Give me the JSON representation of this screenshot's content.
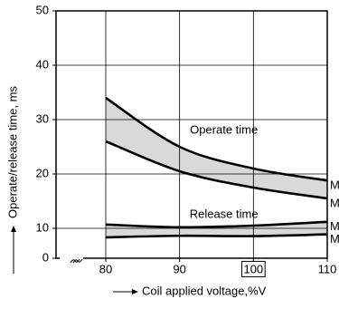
{
  "chart_data": {
    "type": "line",
    "x_label": "Coil applied voltage,%V",
    "y_label": "Operate/release time, ms",
    "x": [
      80,
      90,
      100,
      110
    ],
    "xlim": [
      80,
      110
    ],
    "xticks": [
      80,
      90,
      100,
      110
    ],
    "ylim": [
      0,
      50
    ],
    "yticks": [
      0,
      10,
      20,
      30,
      40,
      50
    ],
    "grid": true,
    "boxed_xtick": 100,
    "fill_between": [
      [
        0,
        1
      ],
      [
        2,
        3
      ]
    ],
    "fill_color": "#d9d9d9",
    "series": [
      {
        "name": "M",
        "color": "#000000",
        "values": [
          34,
          25,
          21,
          18.8
        ]
      },
      {
        "name": "M",
        "color": "#000000",
        "values": [
          26,
          20.5,
          17.5,
          15.5
        ]
      },
      {
        "name": "M",
        "color": "#000000",
        "values": [
          10.7,
          10.2,
          10.5,
          11.2
        ]
      },
      {
        "name": "M",
        "color": "#000000",
        "values": [
          7,
          7.5,
          7.4,
          8
        ]
      }
    ],
    "annotations": [
      {
        "text": "Operate time",
        "x": 96,
        "y": 28
      },
      {
        "text": "Release time",
        "x": 96,
        "y": 12.5
      }
    ]
  }
}
